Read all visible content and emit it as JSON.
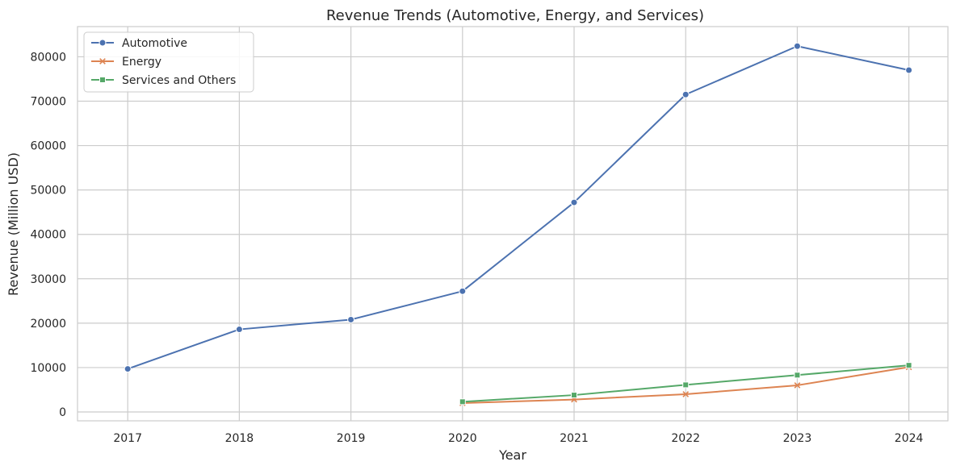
{
  "chart_data": {
    "type": "line",
    "title": "Revenue Trends (Automotive, Energy, and Services)",
    "xlabel": "Year",
    "ylabel": "Revenue (Million USD)",
    "x": [
      2017,
      2018,
      2019,
      2020,
      2021,
      2022,
      2023,
      2024
    ],
    "x_ticks": [
      "2017",
      "2018",
      "2019",
      "2020",
      "2021",
      "2022",
      "2023",
      "2024"
    ],
    "y_ticks": [
      "0",
      "10000",
      "20000",
      "30000",
      "40000",
      "50000",
      "60000",
      "70000",
      "80000"
    ],
    "ylim": [
      -2000,
      86800
    ],
    "grid": true,
    "legend_position": "top-left",
    "series": [
      {
        "name": "Automotive",
        "color": "#4c72b0",
        "marker": "circle",
        "x": [
          2017,
          2018,
          2019,
          2020,
          2021,
          2022,
          2023,
          2024
        ],
        "values": [
          9700,
          18600,
          20800,
          27200,
          47200,
          71500,
          82400,
          77000
        ]
      },
      {
        "name": "Energy",
        "color": "#dd8452",
        "marker": "x",
        "x": [
          2020,
          2021,
          2022,
          2023,
          2024
        ],
        "values": [
          2000,
          2800,
          4000,
          6000,
          10100
        ]
      },
      {
        "name": "Services and Others",
        "color": "#55a868",
        "marker": "square",
        "x": [
          2020,
          2021,
          2022,
          2023,
          2024
        ],
        "values": [
          2300,
          3800,
          6100,
          8300,
          10500
        ]
      }
    ]
  }
}
